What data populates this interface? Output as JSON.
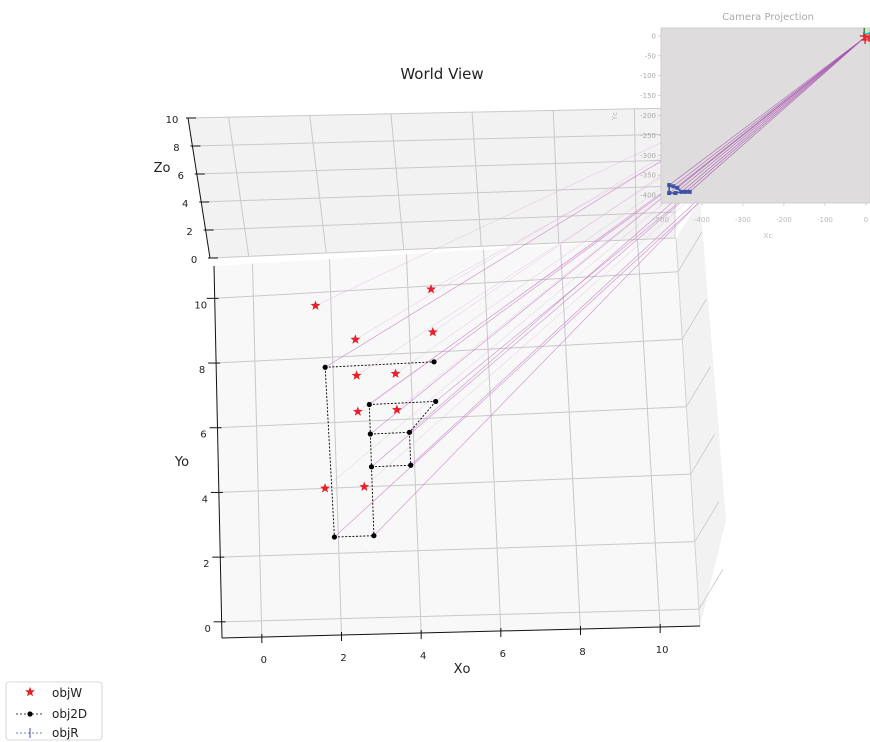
{
  "chart_data": [
    {
      "type": "scatter",
      "title": "World View",
      "xlabel": "Xo",
      "ylabel": "Yo",
      "zlabel": "Zo",
      "x_ticks": [
        0,
        2,
        4,
        6,
        8,
        10
      ],
      "y_ticks": [
        0,
        2,
        4,
        6,
        8,
        10
      ],
      "z_ticks": [
        0,
        2,
        4,
        6,
        8,
        10
      ],
      "xlim": [
        -1,
        11
      ],
      "ylim": [
        -0.5,
        11
      ],
      "zlim": [
        0,
        10
      ],
      "grid": true,
      "legend_position": "bottom-left",
      "series": [
        {
          "name": "objW",
          "marker": "star",
          "color": "#e8202a",
          "points": [
            {
              "x": 1.6,
              "y": 9.6
            },
            {
              "x": 4.6,
              "y": 9.9
            },
            {
              "x": 2.6,
              "y": 8.5
            },
            {
              "x": 4.6,
              "y": 8.6
            },
            {
              "x": 2.6,
              "y": 7.4
            },
            {
              "x": 3.6,
              "y": 7.4
            },
            {
              "x": 2.6,
              "y": 6.3
            },
            {
              "x": 3.6,
              "y": 6.3
            },
            {
              "x": 1.7,
              "y": 4.0
            },
            {
              "x": 2.7,
              "y": 4.0
            }
          ]
        },
        {
          "name": "obj2D",
          "marker": "dot",
          "color": "#000000",
          "points": [
            {
              "x": 1.8,
              "y": 7.7
            },
            {
              "x": 4.6,
              "y": 7.7
            },
            {
              "x": 2.9,
              "y": 6.5
            },
            {
              "x": 4.6,
              "y": 6.5
            },
            {
              "x": 2.9,
              "y": 5.6
            },
            {
              "x": 3.9,
              "y": 5.6
            },
            {
              "x": 2.9,
              "y": 4.6
            },
            {
              "x": 3.9,
              "y": 4.6
            },
            {
              "x": 1.9,
              "y": 2.5
            },
            {
              "x": 2.9,
              "y": 2.5
            }
          ]
        },
        {
          "name": "objR",
          "marker": "plus",
          "color": "#3b53a4"
        }
      ]
    },
    {
      "type": "scatter",
      "title": "Camera Projection",
      "xlabel": "Xc",
      "ylabel": "Yc",
      "x_ticks": [
        -500,
        -400,
        -300,
        -200,
        -100,
        0
      ],
      "y_ticks": [
        0,
        -50,
        -100,
        -150,
        -200,
        -250,
        -300,
        -350,
        -400
      ],
      "xlim": [
        -500,
        10
      ],
      "ylim": [
        -420,
        20
      ],
      "series": [
        {
          "name": "objR",
          "color": "#3b53a4",
          "points": [
            {
              "x": -480,
              "y": -375
            },
            {
              "x": -470,
              "y": -378
            },
            {
              "x": -460,
              "y": -382
            },
            {
              "x": -480,
              "y": -395
            },
            {
              "x": -465,
              "y": -395
            },
            {
              "x": -450,
              "y": -392
            },
            {
              "x": -440,
              "y": -392
            },
            {
              "x": -430,
              "y": -392
            }
          ]
        },
        {
          "name": "objW",
          "color": "#e8202a",
          "points": [
            {
              "x": -5,
              "y": 0
            },
            {
              "x": -2,
              "y": -10
            },
            {
              "x": 8,
              "y": -5
            }
          ]
        }
      ]
    }
  ]
}
